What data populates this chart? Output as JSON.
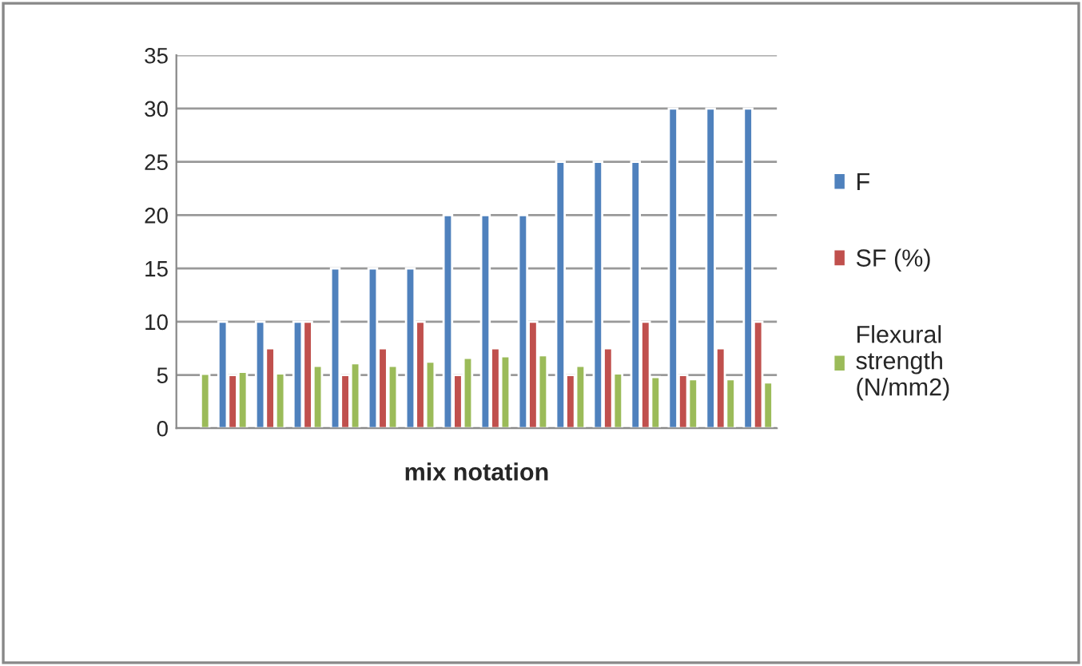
{
  "chart_data": {
    "type": "bar",
    "xlabel": "mix notation",
    "categories": [
      null,
      null,
      null,
      null,
      null,
      null,
      null,
      null,
      null,
      null,
      null,
      null,
      null,
      null,
      null,
      null
    ],
    "series": [
      {
        "name": "F",
        "color": "#4f81bd",
        "values": [
          null,
          10,
          10,
          10,
          15,
          15,
          15,
          20,
          20,
          20,
          25,
          25,
          25,
          30,
          30,
          30
        ]
      },
      {
        "name": "SF (%)",
        "color": "#c0504d",
        "values": [
          null,
          5,
          7.5,
          10,
          5,
          7.5,
          10,
          5,
          7.5,
          10,
          5,
          7.5,
          10,
          5,
          7.5,
          10
        ]
      },
      {
        "name": "Flexural strength (N/mm2)",
        "color": "#9bbb59",
        "values": [
          5.1,
          5.3,
          5.15,
          5.85,
          6.1,
          5.85,
          6.25,
          6.6,
          6.75,
          6.85,
          5.85,
          5.15,
          4.8,
          4.6,
          4.6,
          4.3
        ]
      }
    ],
    "ylim": [
      0,
      35
    ],
    "yticks": [
      0,
      5,
      10,
      15,
      20,
      25,
      30,
      35
    ],
    "grid": "y",
    "legend": "right"
  }
}
